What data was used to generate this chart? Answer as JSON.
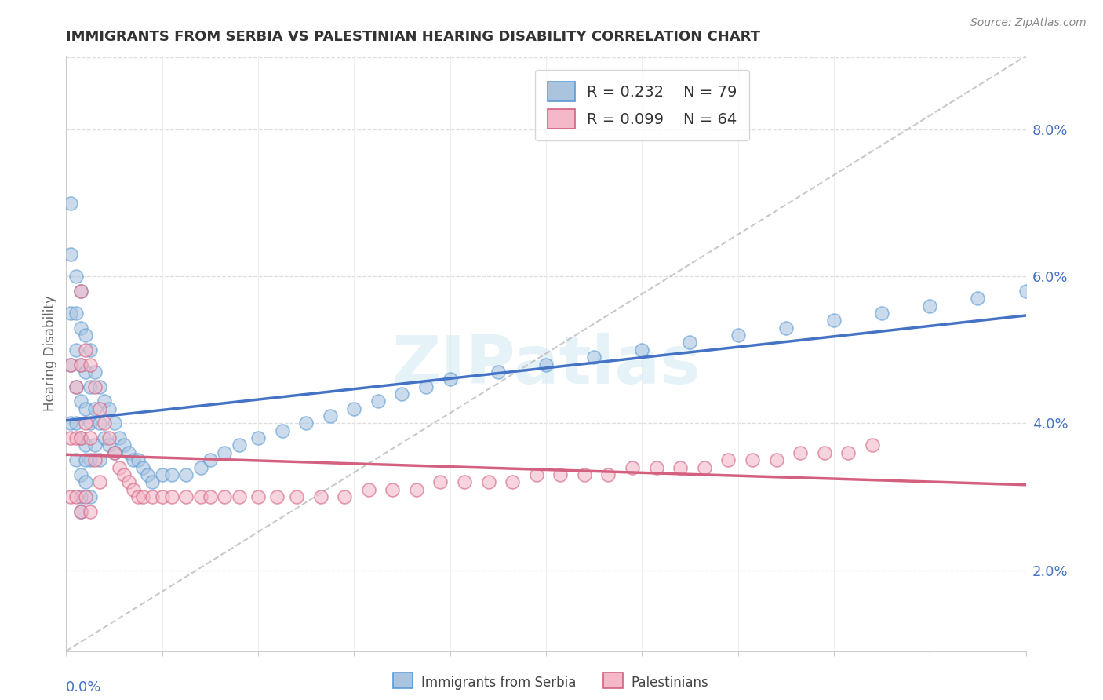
{
  "title": "IMMIGRANTS FROM SERBIA VS PALESTINIAN HEARING DISABILITY CORRELATION CHART",
  "source": "Source: ZipAtlas.com",
  "ylabel": "Hearing Disability",
  "right_ytick_vals": [
    2.0,
    4.0,
    6.0,
    8.0
  ],
  "xmin": 0.0,
  "xmax": 0.2,
  "ymin": 0.009,
  "ymax": 0.09,
  "color_serbia_fill": "#aac4e0",
  "color_serbia_edge": "#5b9bd5",
  "color_serbia_line": "#4472c4",
  "color_pal_fill": "#f4b8c8",
  "color_pal_edge": "#d46080",
  "color_pal_line": "#d46080",
  "color_diagonal": "#bbbbbb",
  "watermark_text": "ZIPatlas",
  "serbia_label": "Immigrants from Serbia",
  "pal_label": "Palestinians",
  "serbia_x": [
    0.001,
    0.001,
    0.001,
    0.001,
    0.001,
    0.002,
    0.002,
    0.002,
    0.002,
    0.002,
    0.002,
    0.003,
    0.003,
    0.003,
    0.003,
    0.003,
    0.003,
    0.003,
    0.004,
    0.004,
    0.004,
    0.004,
    0.004,
    0.005,
    0.005,
    0.005,
    0.005,
    0.005,
    0.006,
    0.006,
    0.006,
    0.007,
    0.007,
    0.007,
    0.008,
    0.008,
    0.009,
    0.009,
    0.01,
    0.01,
    0.011,
    0.012,
    0.013,
    0.014,
    0.015,
    0.016,
    0.017,
    0.018,
    0.02,
    0.022,
    0.025,
    0.028,
    0.03,
    0.033,
    0.036,
    0.04,
    0.045,
    0.05,
    0.055,
    0.06,
    0.065,
    0.07,
    0.075,
    0.08,
    0.09,
    0.1,
    0.11,
    0.12,
    0.13,
    0.14,
    0.15,
    0.16,
    0.17,
    0.18,
    0.19,
    0.2,
    0.004,
    0.003
  ],
  "serbia_y": [
    0.07,
    0.063,
    0.055,
    0.048,
    0.04,
    0.06,
    0.055,
    0.05,
    0.045,
    0.04,
    0.035,
    0.058,
    0.053,
    0.048,
    0.043,
    0.038,
    0.033,
    0.028,
    0.052,
    0.047,
    0.042,
    0.037,
    0.032,
    0.05,
    0.045,
    0.04,
    0.035,
    0.03,
    0.047,
    0.042,
    0.037,
    0.045,
    0.04,
    0.035,
    0.043,
    0.038,
    0.042,
    0.037,
    0.04,
    0.036,
    0.038,
    0.037,
    0.036,
    0.035,
    0.035,
    0.034,
    0.033,
    0.032,
    0.033,
    0.033,
    0.033,
    0.034,
    0.035,
    0.036,
    0.037,
    0.038,
    0.039,
    0.04,
    0.041,
    0.042,
    0.043,
    0.044,
    0.045,
    0.046,
    0.047,
    0.048,
    0.049,
    0.05,
    0.051,
    0.052,
    0.053,
    0.054,
    0.055,
    0.056,
    0.057,
    0.058,
    0.035,
    0.03
  ],
  "pal_x": [
    0.001,
    0.001,
    0.001,
    0.002,
    0.002,
    0.002,
    0.003,
    0.003,
    0.003,
    0.003,
    0.004,
    0.004,
    0.004,
    0.005,
    0.005,
    0.005,
    0.006,
    0.006,
    0.007,
    0.007,
    0.008,
    0.009,
    0.01,
    0.011,
    0.012,
    0.013,
    0.014,
    0.015,
    0.016,
    0.018,
    0.02,
    0.022,
    0.025,
    0.028,
    0.03,
    0.033,
    0.036,
    0.04,
    0.044,
    0.048,
    0.053,
    0.058,
    0.063,
    0.068,
    0.073,
    0.078,
    0.083,
    0.088,
    0.093,
    0.098,
    0.103,
    0.108,
    0.113,
    0.118,
    0.123,
    0.128,
    0.133,
    0.138,
    0.143,
    0.148,
    0.153,
    0.158,
    0.163,
    0.168
  ],
  "pal_y": [
    0.048,
    0.038,
    0.03,
    0.045,
    0.038,
    0.03,
    0.058,
    0.048,
    0.038,
    0.028,
    0.05,
    0.04,
    0.03,
    0.048,
    0.038,
    0.028,
    0.045,
    0.035,
    0.042,
    0.032,
    0.04,
    0.038,
    0.036,
    0.034,
    0.033,
    0.032,
    0.031,
    0.03,
    0.03,
    0.03,
    0.03,
    0.03,
    0.03,
    0.03,
    0.03,
    0.03,
    0.03,
    0.03,
    0.03,
    0.03,
    0.03,
    0.03,
    0.031,
    0.031,
    0.031,
    0.032,
    0.032,
    0.032,
    0.032,
    0.033,
    0.033,
    0.033,
    0.033,
    0.034,
    0.034,
    0.034,
    0.034,
    0.035,
    0.035,
    0.035,
    0.036,
    0.036,
    0.036,
    0.037
  ]
}
